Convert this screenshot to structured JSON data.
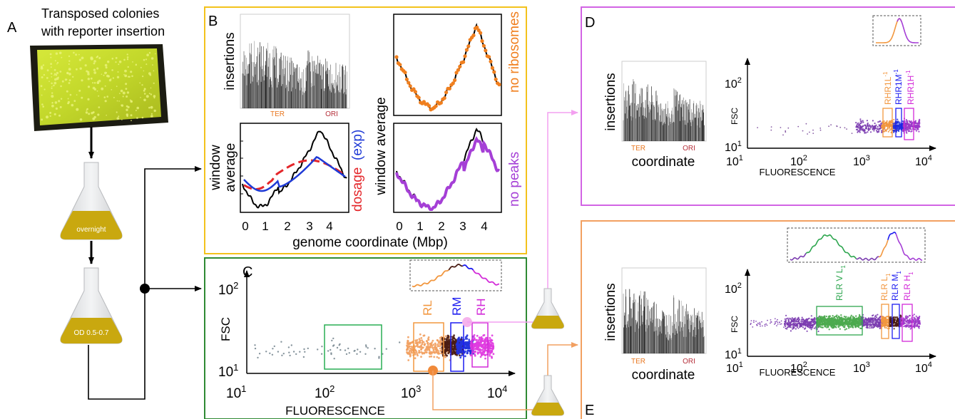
{
  "panel_labels": {
    "a": "A",
    "b": "B",
    "c": "C",
    "d": "D",
    "e": "E"
  },
  "panel_a": {
    "title_line1": "Transposed colonies",
    "title_line2": "with reporter insertion",
    "flask1_label": "overnight",
    "flask2_label": "OD 0.5-0.7"
  },
  "panel_b": {
    "insertions_label": "insertions",
    "ter_label": "TER",
    "ori_label": "ORI",
    "window_average_label": "window average",
    "window_label": "window",
    "average_label": "average",
    "dosage_label": "dosage",
    "exp_label": "(exp)",
    "no_ribosomes_label": "no ribosomes",
    "no_peaks_label": "no peaks",
    "xlabel": "genome coordinate (Mbp)",
    "xticks": [
      "0",
      "1",
      "2",
      "3",
      "4"
    ],
    "colors": {
      "ter": "#e8761e",
      "ori": "#b5303a",
      "dosage": "#e4262a",
      "exp": "#1f3ad6",
      "no_ribosomes": "#f07f1e",
      "no_peaks": "#a53fd6",
      "border": "#f3c21c"
    }
  },
  "panel_c": {
    "ylabel": "FSC",
    "xlabel": "FLUORESCENCE",
    "yticks": [
      "10",
      "10"
    ],
    "yexp": [
      "2",
      "1"
    ],
    "xticks": [
      "10",
      "10",
      "10",
      "10"
    ],
    "xexp": [
      "1",
      "2",
      "3",
      "4"
    ],
    "gates": [
      "RL",
      "RM",
      "RH"
    ],
    "colors": {
      "border": "#2f8a34",
      "rl": "#f2973f",
      "rm": "#1c1cf0",
      "rh": "#d22ad8",
      "low_gate": "#29ad54"
    }
  },
  "panel_d": {
    "insertions_label": "insertions",
    "ter_label": "TER",
    "ori_label": "ORI",
    "coordinate_label": "coordinate",
    "ylabel": "FSC",
    "xlabel": "FLUORESCENCE",
    "gates": [
      "RHR1L",
      "RHR1M",
      "RHR1H"
    ],
    "gate_sup": "-1",
    "colors": {
      "border": "#d264e4"
    }
  },
  "panel_e": {
    "insertions_label": "insertions",
    "ter_label": "TER",
    "ori_label": "ORI",
    "coordinate_label": "coordinate",
    "ylabel": "FSC",
    "xlabel": "FLUORESCENCE",
    "gates": [
      "RLR V L",
      "RLR L",
      "RLR M",
      "RLR H"
    ],
    "gate_sub": "1",
    "colors": {
      "border": "#f2a061",
      "vl": "#2ea64f"
    }
  }
}
